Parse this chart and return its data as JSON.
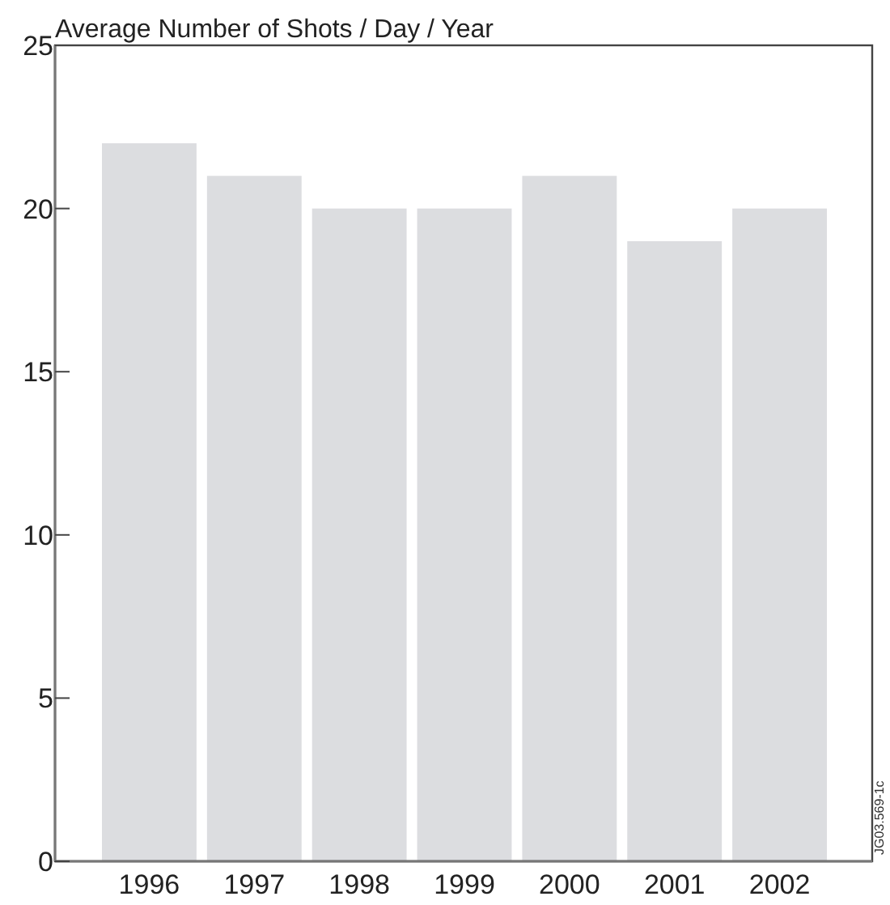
{
  "chart_data": {
    "type": "bar",
    "title": "Average Number of Shots / Day / Year",
    "categories": [
      "1996",
      "1997",
      "1998",
      "1999",
      "2000",
      "2001",
      "2002"
    ],
    "values": [
      22,
      21,
      20,
      20,
      21,
      19,
      20
    ],
    "color": "#dcdde0",
    "ylim": [
      0,
      25
    ],
    "yticks": [
      0,
      5,
      10,
      15,
      20,
      25
    ],
    "grid": false,
    "annotations": [
      "JG03.569-1c"
    ]
  }
}
